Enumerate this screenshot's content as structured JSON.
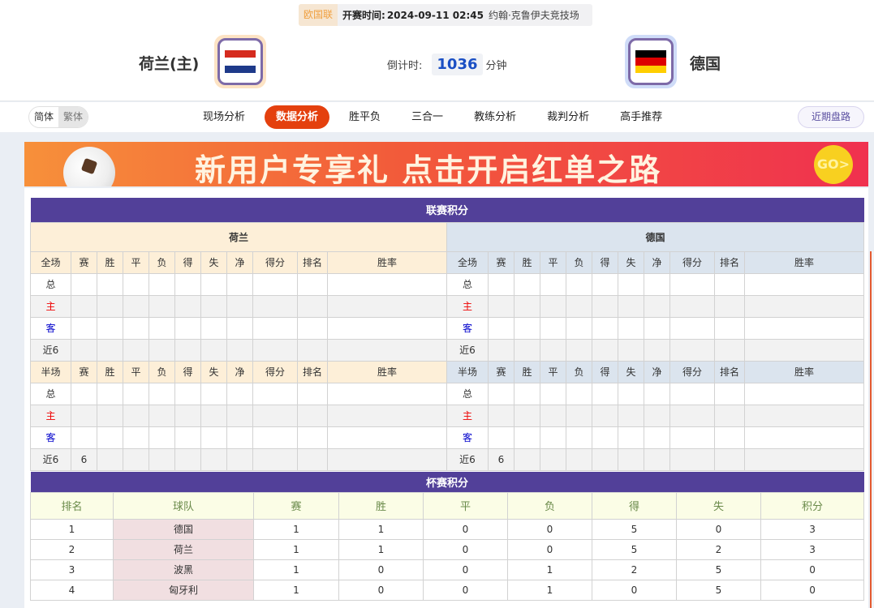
{
  "match": {
    "league": "欧国联",
    "time_label": "开赛时间:",
    "time": "2024-09-11 02:45",
    "venue": "约翰·克鲁伊夫竞技场",
    "home": "荷兰(主)",
    "away": "德国",
    "countdown_label": "倒计时:",
    "countdown": "1036",
    "countdown_unit": "分钟",
    "home_flag_colors": [
      "#d52b1e",
      "#ffffff",
      "#1e3a8a"
    ],
    "away_flag_colors": [
      "#000000",
      "#dd0000",
      "#ffce00"
    ]
  },
  "nav": {
    "lang": [
      "简体",
      "繁体"
    ],
    "tabs": [
      "现场分析",
      "数据分析",
      "胜平负",
      "三合一",
      "教练分析",
      "裁判分析",
      "高手推荐"
    ],
    "active_tab": "数据分析",
    "recent": "近期盘路"
  },
  "banner": {
    "text": "新用户专享礼 点击开启红单之路",
    "go": "GO>"
  },
  "league_table": {
    "title": "联赛积分",
    "home_team": "荷兰",
    "away_team": "德国",
    "full_header": [
      "全场",
      "赛",
      "胜",
      "平",
      "负",
      "得",
      "失",
      "净",
      "得分",
      "排名",
      "胜率"
    ],
    "half_header": [
      "半场",
      "赛",
      "胜",
      "平",
      "负",
      "得",
      "失",
      "净",
      "得分",
      "排名",
      "胜率"
    ],
    "row_labels": [
      "总",
      "主",
      "客",
      "近6"
    ],
    "home_full": [
      [
        "",
        "",
        "",
        "",
        "",
        "",
        "",
        "",
        "",
        ""
      ],
      [
        "",
        "",
        "",
        "",
        "",
        "",
        "",
        "",
        "",
        ""
      ],
      [
        "",
        "",
        "",
        "",
        "",
        "",
        "",
        "",
        "",
        ""
      ],
      [
        "",
        "",
        "",
        "",
        "",
        "",
        "",
        "",
        "",
        ""
      ]
    ],
    "home_half": [
      [
        "",
        "",
        "",
        "",
        "",
        "",
        "",
        "",
        "",
        ""
      ],
      [
        "",
        "",
        "",
        "",
        "",
        "",
        "",
        "",
        "",
        ""
      ],
      [
        "",
        "",
        "",
        "",
        "",
        "",
        "",
        "",
        "",
        ""
      ],
      [
        "6",
        "",
        "",
        "",
        "",
        "",
        "",
        "",
        "",
        ""
      ]
    ],
    "away_full": [
      [
        "",
        "",
        "",
        "",
        "",
        "",
        "",
        "",
        "",
        ""
      ],
      [
        "",
        "",
        "",
        "",
        "",
        "",
        "",
        "",
        "",
        ""
      ],
      [
        "",
        "",
        "",
        "",
        "",
        "",
        "",
        "",
        "",
        ""
      ],
      [
        "",
        "",
        "",
        "",
        "",
        "",
        "",
        "",
        "",
        ""
      ]
    ],
    "away_half": [
      [
        "",
        "",
        "",
        "",
        "",
        "",
        "",
        "",
        "",
        ""
      ],
      [
        "",
        "",
        "",
        "",
        "",
        "",
        "",
        "",
        "",
        ""
      ],
      [
        "",
        "",
        "",
        "",
        "",
        "",
        "",
        "",
        "",
        ""
      ],
      [
        "6",
        "",
        "",
        "",
        "",
        "",
        "",
        "",
        "",
        ""
      ]
    ]
  },
  "cup_table": {
    "title": "杯赛积分",
    "headers": [
      "排名",
      "球队",
      "赛",
      "胜",
      "平",
      "负",
      "得",
      "失",
      "积分"
    ],
    "rows": [
      [
        "1",
        "德国",
        "1",
        "1",
        "0",
        "0",
        "5",
        "0",
        "3"
      ],
      [
        "2",
        "荷兰",
        "1",
        "1",
        "0",
        "0",
        "5",
        "2",
        "3"
      ],
      [
        "3",
        "波黑",
        "1",
        "0",
        "0",
        "1",
        "2",
        "5",
        "0"
      ],
      [
        "4",
        "匈牙利",
        "1",
        "0",
        "0",
        "1",
        "0",
        "5",
        "0"
      ]
    ]
  }
}
